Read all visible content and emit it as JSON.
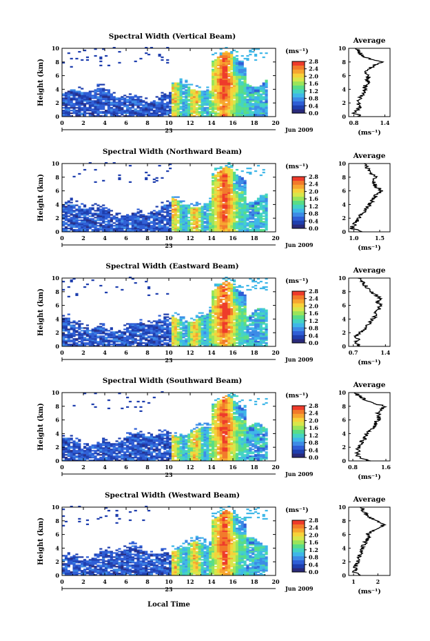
{
  "shared": {
    "height_label": "Height (km)",
    "x_ticks": [
      "0",
      "2",
      "4",
      "6",
      "8",
      "10",
      "12",
      "14",
      "16",
      "18",
      "20"
    ],
    "y_ticks": [
      "0",
      "2",
      "4",
      "6",
      "8",
      "10"
    ],
    "date_day": "23",
    "date_month_year": "Jun 2009",
    "xlabel": "Local Time",
    "colorbar_unit": "(ms⁻¹)",
    "colorbar_ticks": [
      "0.0",
      "0.4",
      "0.8",
      "1.2",
      "1.6",
      "2.0",
      "2.4",
      "2.8"
    ],
    "profile_title": "Average",
    "profile_unit": "(ms⁻¹)"
  },
  "colorbar_colors": [
    "#2a2a7a",
    "#1f3fae",
    "#2f5fd6",
    "#3d8be6",
    "#3fb7e8",
    "#44d3c3",
    "#59dd86",
    "#9ae45a",
    "#d8e64a",
    "#f6d23a",
    "#f7a52f",
    "#f27a2a",
    "#ee3b2b"
  ],
  "chart_data": [
    {
      "type": "heatmap",
      "title": "Spectral Width (Vertical Beam)",
      "xlim": [
        0,
        20
      ],
      "ylim": [
        0,
        10
      ],
      "zlim": [
        0.0,
        2.8
      ],
      "xlabel": "",
      "ylabel": "Height (km)",
      "colorbar_label": "(ms⁻¹)",
      "profile": {
        "title": "Average",
        "xlabel": "(ms⁻¹)",
        "x_ticks": [
          "0.8",
          "1.4"
        ],
        "xlim": [
          0.7,
          1.5
        ],
        "height": [
          0,
          0.5,
          1,
          1.5,
          2,
          2.5,
          3,
          3.5,
          4,
          4.5,
          5,
          5.5,
          6,
          6.5,
          7,
          7.5,
          8,
          8.5,
          9,
          9.5,
          10
        ],
        "values": [
          0.95,
          0.82,
          0.86,
          0.92,
          0.88,
          0.9,
          0.95,
          0.98,
          1.0,
          1.02,
          1.08,
          1.05,
          1.12,
          1.0,
          1.1,
          1.2,
          1.35,
          1.1,
          0.95,
          0.9,
          0.85
        ]
      }
    },
    {
      "type": "heatmap",
      "title": "Spectral Width (Northward Beam)",
      "xlim": [
        0,
        20
      ],
      "ylim": [
        0,
        10
      ],
      "zlim": [
        0.0,
        2.8
      ],
      "xlabel": "",
      "ylabel": "Height (km)",
      "colorbar_label": "(ms⁻¹)",
      "profile": {
        "title": "Average",
        "xlabel": "(ms⁻¹)",
        "x_ticks": [
          "1.0",
          "1.5"
        ],
        "xlim": [
          0.9,
          1.7
        ],
        "height": [
          0,
          0.5,
          1,
          1.5,
          2,
          2.5,
          3,
          3.5,
          4,
          4.5,
          5,
          5.5,
          6,
          6.5,
          7,
          7.5,
          8,
          8.5,
          9,
          9.5,
          10
        ],
        "values": [
          1.15,
          0.95,
          1.0,
          1.05,
          1.1,
          1.15,
          1.2,
          1.25,
          1.3,
          1.35,
          1.4,
          1.45,
          1.55,
          1.45,
          1.4,
          1.35,
          1.45,
          1.35,
          1.3,
          1.25,
          1.2
        ]
      }
    },
    {
      "type": "heatmap",
      "title": "Spectral Width (Eastward Beam)",
      "xlim": [
        0,
        20
      ],
      "ylim": [
        0,
        10
      ],
      "zlim": [
        0.0,
        2.8
      ],
      "xlabel": "",
      "ylabel": "Height (km)",
      "colorbar_label": "(ms⁻¹)",
      "profile": {
        "title": "Average",
        "xlabel": "(ms⁻¹)",
        "x_ticks": [
          "0.7",
          "1.4"
        ],
        "xlim": [
          0.6,
          1.5
        ],
        "height": [
          0,
          0.5,
          1,
          1.5,
          2,
          2.5,
          3,
          3.5,
          4,
          4.5,
          5,
          5.5,
          6,
          6.5,
          7,
          7.5,
          8,
          8.5,
          9,
          9.5,
          10
        ],
        "values": [
          0.85,
          0.75,
          0.8,
          0.78,
          0.85,
          0.95,
          1.0,
          1.05,
          1.12,
          1.18,
          1.2,
          1.25,
          1.3,
          1.22,
          1.28,
          1.2,
          1.1,
          1.0,
          0.95,
          0.9,
          0.8
        ]
      }
    },
    {
      "type": "heatmap",
      "title": "Spectral Width (Southward Beam)",
      "xlim": [
        0,
        20
      ],
      "ylim": [
        0,
        10
      ],
      "zlim": [
        0.0,
        2.8
      ],
      "xlabel": "",
      "ylabel": "Height (km)",
      "colorbar_label": "(ms⁻¹)",
      "profile": {
        "title": "Average",
        "xlabel": "(ms⁻¹)",
        "x_ticks": [
          "0.8",
          "1.6"
        ],
        "xlim": [
          0.7,
          1.7
        ],
        "height": [
          0,
          0.5,
          1,
          1.5,
          2,
          2.5,
          3,
          3.5,
          4,
          4.5,
          5,
          5.5,
          6,
          6.5,
          7,
          7.5,
          8,
          8.5,
          9,
          9.5,
          10
        ],
        "values": [
          1.2,
          0.95,
          0.9,
          0.92,
          0.95,
          0.98,
          1.05,
          1.1,
          1.15,
          1.25,
          1.3,
          1.35,
          1.4,
          1.45,
          1.42,
          1.5,
          1.55,
          1.3,
          1.1,
          0.95,
          0.85
        ]
      }
    },
    {
      "type": "heatmap",
      "title": "Spectral Width (Westward Beam)",
      "xlim": [
        0,
        20
      ],
      "ylim": [
        0,
        10
      ],
      "zlim": [
        0.0,
        2.8
      ],
      "xlabel": "Local Time",
      "ylabel": "Height (km)",
      "colorbar_label": "(ms⁻¹)",
      "profile": {
        "title": "Average",
        "xlabel": "(ms⁻¹)",
        "x_ticks": [
          "1",
          "2"
        ],
        "xlim": [
          0.8,
          2.5
        ],
        "height": [
          0,
          0.5,
          1,
          1.5,
          2,
          2.5,
          3,
          3.5,
          4,
          4.5,
          5,
          5.5,
          6,
          6.5,
          7,
          7.5,
          8,
          8.5,
          9,
          9.5,
          10
        ],
        "values": [
          1.3,
          1.05,
          1.1,
          1.1,
          1.15,
          1.2,
          1.25,
          1.3,
          1.35,
          1.45,
          1.5,
          1.6,
          1.55,
          1.8,
          2.0,
          2.3,
          1.9,
          1.7,
          1.5,
          1.4,
          1.3
        ]
      }
    }
  ]
}
